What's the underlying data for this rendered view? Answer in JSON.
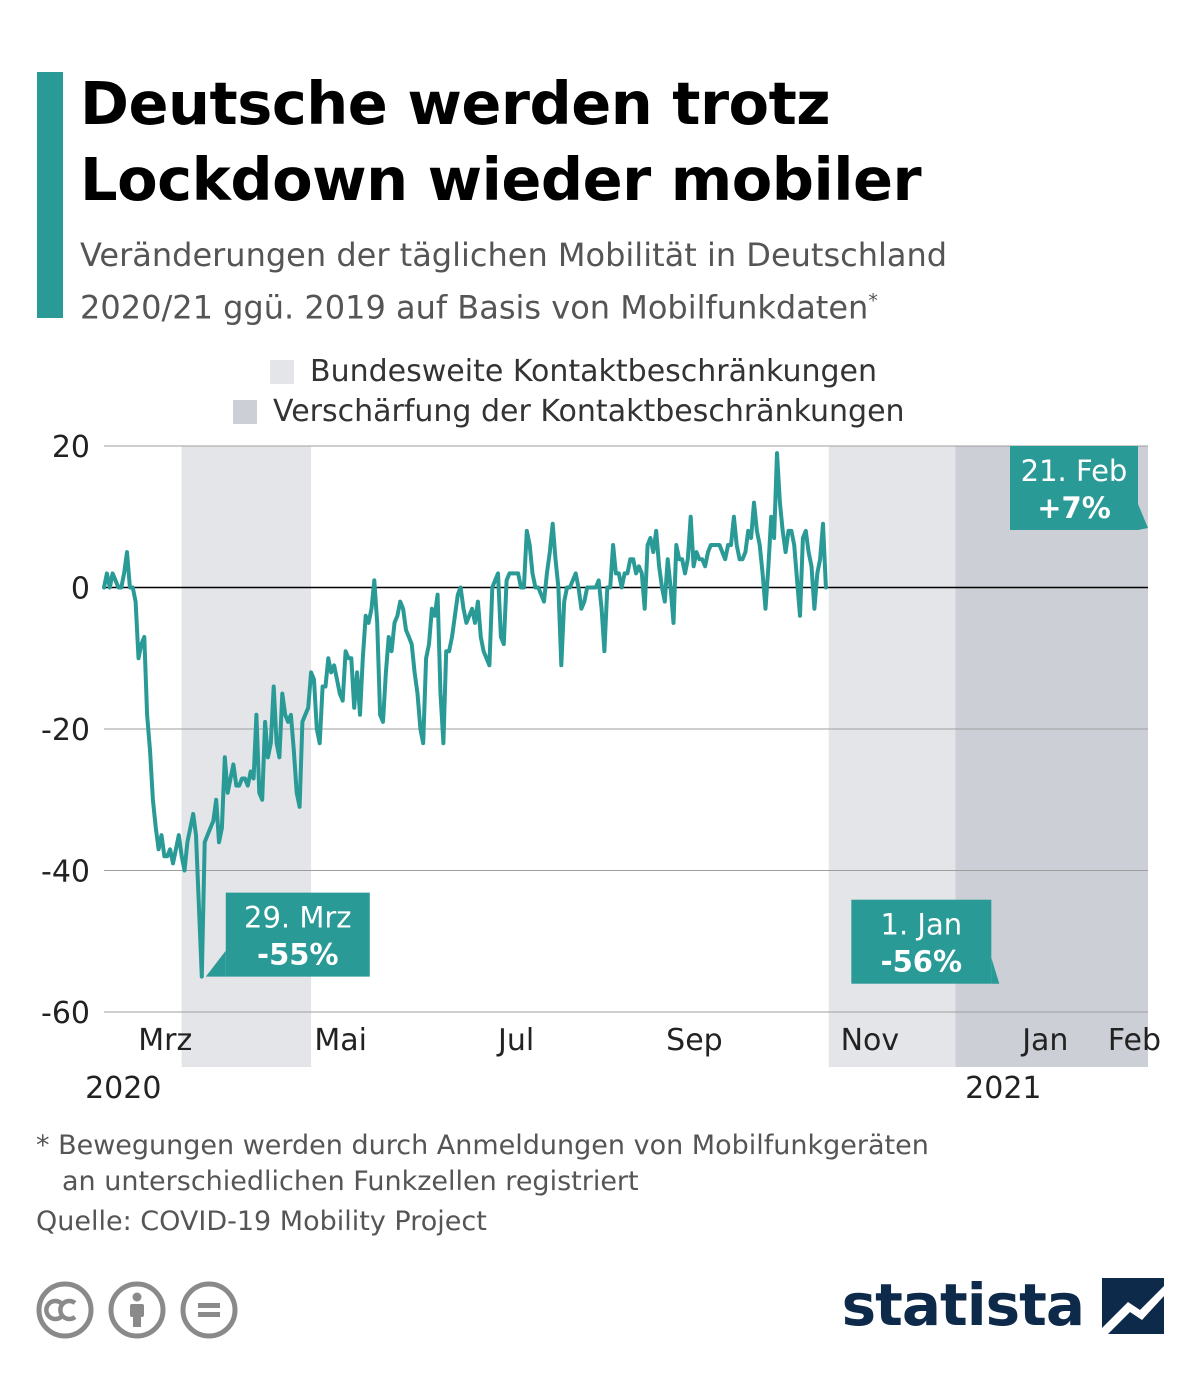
{
  "header": {
    "title_line1": "Deutsche werden trotz",
    "title_line2": "Lockdown wieder mobiler",
    "subtitle_line1": "Veränderungen der täglichen Mobilität in Deutschland",
    "subtitle_line2": "2020/21 ggü. 2019 auf Basis von Mobilfunkdaten",
    "subtitle_marker": "*"
  },
  "colors": {
    "accent": "#2a9a97",
    "line": "#2a9a97",
    "band_light": "#e3e5e8",
    "band_dark": "#ccd0d6",
    "grid": "#9e9e9e",
    "zero_line": "#000000",
    "brand": "#0e2a4a"
  },
  "chart_data": {
    "type": "line",
    "title": "",
    "xlabel": "",
    "ylabel": "",
    "ylim": [
      -60,
      20
    ],
    "y_ticks": [
      "20",
      "0",
      "-20",
      "-40",
      "-60"
    ],
    "grid": true,
    "x_range": [
      "2020-02-24",
      "2021-02-21"
    ],
    "x_month_labels": [
      {
        "label": "Mrz",
        "date": "2020-03-01"
      },
      {
        "label": "Mai",
        "date": "2020-05-01"
      },
      {
        "label": "Jul",
        "date": "2020-07-01"
      },
      {
        "label": "Sep",
        "date": "2020-09-01"
      },
      {
        "label": "Nov",
        "date": "2020-11-01"
      },
      {
        "label": "Jan",
        "date": "2021-01-01"
      },
      {
        "label": "Feb",
        "date": "2021-02-01"
      }
    ],
    "x_year_labels": [
      {
        "label": "2020",
        "date": "2020-03-01"
      },
      {
        "label": "2021",
        "date": "2021-01-01"
      }
    ],
    "legend": [
      {
        "label": "Bundesweite Kontaktbeschränkungen",
        "color": "#e3e5e8"
      },
      {
        "label": "Verschärfung der Kontaktbeschränkungen",
        "color": "#ccd0d6"
      }
    ],
    "legend_position": "top",
    "shaded_periods": [
      {
        "type": "light",
        "start": "2020-03-22",
        "end": "2020-05-06"
      },
      {
        "type": "light",
        "start": "2020-11-02",
        "end": "2020-12-16"
      },
      {
        "type": "dark",
        "start": "2020-12-16",
        "end": "2021-02-21"
      }
    ],
    "series": [
      {
        "points": [
          [
            "2020-02-24",
            0
          ],
          [
            "2020-02-25",
            2
          ],
          [
            "2020-02-26",
            0
          ],
          [
            "2020-02-27",
            2
          ],
          [
            "2020-02-28",
            1
          ],
          [
            "2020-02-29",
            0
          ],
          [
            "2020-03-01",
            0
          ],
          [
            "2020-03-02",
            2
          ],
          [
            "2020-03-03",
            5
          ],
          [
            "2020-03-04",
            0
          ],
          [
            "2020-03-05",
            0
          ],
          [
            "2020-03-06",
            -2
          ],
          [
            "2020-03-07",
            -10
          ],
          [
            "2020-03-08",
            -8
          ],
          [
            "2020-03-09",
            -7
          ],
          [
            "2020-03-10",
            -18
          ],
          [
            "2020-03-11",
            -23
          ],
          [
            "2020-03-12",
            -30
          ],
          [
            "2020-03-13",
            -34
          ],
          [
            "2020-03-14",
            -37
          ],
          [
            "2020-03-15",
            -35
          ],
          [
            "2020-03-16",
            -38
          ],
          [
            "2020-03-17",
            -38
          ],
          [
            "2020-03-18",
            -37
          ],
          [
            "2020-03-19",
            -39
          ],
          [
            "2020-03-20",
            -37
          ],
          [
            "2020-03-21",
            -35
          ],
          [
            "2020-03-22",
            -38
          ],
          [
            "2020-03-23",
            -40
          ],
          [
            "2020-03-24",
            -36
          ],
          [
            "2020-03-25",
            -34
          ],
          [
            "2020-03-26",
            -32
          ],
          [
            "2020-03-27",
            -35
          ],
          [
            "2020-03-28",
            -45
          ],
          [
            "2020-03-29",
            -55
          ],
          [
            "2020-03-30",
            -36
          ],
          [
            "2020-03-31",
            -35
          ],
          [
            "2020-04-01",
            -34
          ],
          [
            "2020-04-02",
            -33
          ],
          [
            "2020-04-03",
            -30
          ],
          [
            "2020-04-04",
            -36
          ],
          [
            "2020-04-05",
            -34
          ],
          [
            "2020-04-06",
            -24
          ],
          [
            "2020-04-07",
            -29
          ],
          [
            "2020-04-08",
            -27
          ],
          [
            "2020-04-09",
            -25
          ],
          [
            "2020-04-10",
            -28
          ],
          [
            "2020-04-11",
            -28
          ],
          [
            "2020-04-12",
            -27
          ],
          [
            "2020-04-13",
            -27
          ],
          [
            "2020-04-14",
            -28
          ],
          [
            "2020-04-15",
            -26
          ],
          [
            "2020-04-16",
            -27
          ],
          [
            "2020-04-17",
            -18
          ],
          [
            "2020-04-18",
            -29
          ],
          [
            "2020-04-19",
            -30
          ],
          [
            "2020-04-20",
            -19
          ],
          [
            "2020-04-21",
            -24
          ],
          [
            "2020-04-22",
            -22
          ],
          [
            "2020-04-23",
            -14
          ],
          [
            "2020-04-24",
            -22
          ],
          [
            "2020-04-25",
            -24
          ],
          [
            "2020-04-26",
            -15
          ],
          [
            "2020-04-27",
            -18
          ],
          [
            "2020-04-28",
            -19
          ],
          [
            "2020-04-29",
            -18
          ],
          [
            "2020-04-30",
            -23
          ],
          [
            "2020-05-01",
            -29
          ],
          [
            "2020-05-02",
            -31
          ],
          [
            "2020-05-03",
            -19
          ],
          [
            "2020-05-04",
            -18
          ],
          [
            "2020-05-05",
            -17
          ],
          [
            "2020-05-06",
            -12
          ],
          [
            "2020-05-07",
            -13
          ],
          [
            "2020-05-08",
            -20
          ],
          [
            "2020-05-09",
            -22
          ],
          [
            "2020-05-10",
            -14
          ],
          [
            "2020-05-11",
            -14
          ],
          [
            "2020-05-12",
            -10
          ],
          [
            "2020-05-13",
            -12
          ],
          [
            "2020-05-14",
            -11
          ],
          [
            "2020-05-15",
            -13
          ],
          [
            "2020-05-16",
            -15
          ],
          [
            "2020-05-17",
            -16
          ],
          [
            "2020-05-18",
            -9
          ],
          [
            "2020-05-19",
            -10
          ],
          [
            "2020-05-20",
            -10
          ],
          [
            "2020-05-21",
            -17
          ],
          [
            "2020-05-22",
            -12
          ],
          [
            "2020-05-23",
            -18
          ],
          [
            "2020-05-24",
            -10
          ],
          [
            "2020-05-25",
            -4
          ],
          [
            "2020-05-26",
            -5
          ],
          [
            "2020-05-27",
            -3
          ],
          [
            "2020-05-28",
            1
          ],
          [
            "2020-05-29",
            -5
          ],
          [
            "2020-05-30",
            -18
          ],
          [
            "2020-05-31",
            -19
          ],
          [
            "2020-06-01",
            -12
          ],
          [
            "2020-06-02",
            -7
          ],
          [
            "2020-06-03",
            -9
          ],
          [
            "2020-06-04",
            -5
          ],
          [
            "2020-06-05",
            -4
          ],
          [
            "2020-06-06",
            -2
          ],
          [
            "2020-06-07",
            -3
          ],
          [
            "2020-06-08",
            -6
          ],
          [
            "2020-06-09",
            -7
          ],
          [
            "2020-06-10",
            -8
          ],
          [
            "2020-06-11",
            -12
          ],
          [
            "2020-06-12",
            -15
          ],
          [
            "2020-06-13",
            -20
          ],
          [
            "2020-06-14",
            -22
          ],
          [
            "2020-06-15",
            -10
          ],
          [
            "2020-06-16",
            -8
          ],
          [
            "2020-06-17",
            -3
          ],
          [
            "2020-06-18",
            -4
          ],
          [
            "2020-06-19",
            -1
          ],
          [
            "2020-06-20",
            -15
          ],
          [
            "2020-06-21",
            -22
          ],
          [
            "2020-06-22",
            -9
          ],
          [
            "2020-06-23",
            -9
          ],
          [
            "2020-06-24",
            -7
          ],
          [
            "2020-06-25",
            -4
          ],
          [
            "2020-06-26",
            -1
          ],
          [
            "2020-06-27",
            0
          ],
          [
            "2020-06-28",
            -3
          ],
          [
            "2020-06-29",
            -5
          ],
          [
            "2020-06-30",
            -4
          ],
          [
            "2020-07-01",
            -3
          ],
          [
            "2020-07-02",
            -5
          ],
          [
            "2020-07-03",
            -2
          ],
          [
            "2020-07-04",
            -7
          ],
          [
            "2020-07-05",
            -9
          ],
          [
            "2020-07-06",
            -10
          ],
          [
            "2020-07-07",
            -11
          ],
          [
            "2020-07-08",
            0
          ],
          [
            "2020-07-09",
            1
          ],
          [
            "2020-07-10",
            2
          ],
          [
            "2020-07-11",
            -7
          ],
          [
            "2020-07-12",
            -8
          ],
          [
            "2020-07-13",
            1
          ],
          [
            "2020-07-14",
            2
          ],
          [
            "2020-07-15",
            2
          ],
          [
            "2020-07-16",
            2
          ],
          [
            "2020-07-17",
            2
          ],
          [
            "2020-07-18",
            0
          ],
          [
            "2020-07-19",
            0
          ],
          [
            "2020-07-20",
            8
          ],
          [
            "2020-07-21",
            6
          ],
          [
            "2020-07-22",
            2
          ],
          [
            "2020-07-23",
            0
          ],
          [
            "2020-07-24",
            0
          ],
          [
            "2020-07-25",
            -1
          ],
          [
            "2020-07-26",
            -2
          ],
          [
            "2020-07-27",
            2
          ],
          [
            "2020-07-28",
            5
          ],
          [
            "2020-07-29",
            9
          ],
          [
            "2020-07-30",
            4
          ],
          [
            "2020-07-31",
            0
          ],
          [
            "2020-08-01",
            -11
          ],
          [
            "2020-08-02",
            -2
          ],
          [
            "2020-08-03",
            0
          ],
          [
            "2020-08-04",
            0
          ],
          [
            "2020-08-05",
            1
          ],
          [
            "2020-08-06",
            2
          ],
          [
            "2020-08-07",
            0
          ],
          [
            "2020-08-08",
            -3
          ],
          [
            "2020-08-09",
            -2
          ],
          [
            "2020-08-10",
            0
          ],
          [
            "2020-08-11",
            0
          ],
          [
            "2020-08-12",
            0
          ],
          [
            "2020-08-13",
            0
          ],
          [
            "2020-08-14",
            1
          ],
          [
            "2020-08-15",
            -3
          ],
          [
            "2020-08-16",
            -9
          ],
          [
            "2020-08-17",
            0
          ],
          [
            "2020-08-18",
            0
          ],
          [
            "2020-08-19",
            6
          ],
          [
            "2020-08-20",
            2
          ],
          [
            "2020-08-21",
            2
          ],
          [
            "2020-08-22",
            0
          ],
          [
            "2020-08-23",
            2
          ],
          [
            "2020-08-24",
            2
          ],
          [
            "2020-08-25",
            4
          ],
          [
            "2020-08-26",
            4
          ],
          [
            "2020-08-27",
            2
          ],
          [
            "2020-08-28",
            3
          ],
          [
            "2020-08-29",
            2
          ],
          [
            "2020-08-30",
            -3
          ],
          [
            "2020-08-31",
            6
          ],
          [
            "2020-09-01",
            7
          ],
          [
            "2020-09-02",
            5
          ],
          [
            "2020-09-03",
            8
          ],
          [
            "2020-09-04",
            3
          ],
          [
            "2020-09-05",
            0
          ],
          [
            "2020-09-06",
            -2
          ],
          [
            "2020-09-07",
            4
          ],
          [
            "2020-09-08",
            0
          ],
          [
            "2020-09-09",
            -5
          ],
          [
            "2020-09-10",
            6
          ],
          [
            "2020-09-11",
            4
          ],
          [
            "2020-09-12",
            4
          ],
          [
            "2020-09-13",
            2
          ],
          [
            "2020-09-14",
            4
          ],
          [
            "2020-09-15",
            10
          ],
          [
            "2020-09-16",
            3
          ],
          [
            "2020-09-17",
            5
          ],
          [
            "2020-09-18",
            4
          ],
          [
            "2020-09-19",
            4
          ],
          [
            "2020-09-20",
            3
          ],
          [
            "2020-09-21",
            5
          ],
          [
            "2020-09-22",
            6
          ],
          [
            "2020-09-23",
            6
          ],
          [
            "2020-09-24",
            6
          ],
          [
            "2020-09-25",
            6
          ],
          [
            "2020-09-26",
            5
          ],
          [
            "2020-09-27",
            4
          ],
          [
            "2020-09-28",
            6
          ],
          [
            "2020-09-29",
            6
          ],
          [
            "2020-09-30",
            10
          ],
          [
            "2020-10-01",
            6
          ],
          [
            "2020-10-02",
            4
          ],
          [
            "2020-10-03",
            4
          ],
          [
            "2020-10-04",
            5
          ],
          [
            "2020-10-05",
            8
          ],
          [
            "2020-10-06",
            7
          ],
          [
            "2020-10-07",
            12
          ],
          [
            "2020-10-08",
            8
          ],
          [
            "2020-10-09",
            6
          ],
          [
            "2020-10-10",
            2
          ],
          [
            "2020-10-11",
            -3
          ],
          [
            "2020-10-12",
            3
          ],
          [
            "2020-10-13",
            10
          ],
          [
            "2020-10-14",
            7
          ],
          [
            "2020-10-15",
            19
          ],
          [
            "2020-10-16",
            12
          ],
          [
            "2020-10-17",
            8
          ],
          [
            "2020-10-18",
            5
          ],
          [
            "2020-10-19",
            8
          ],
          [
            "2020-10-20",
            8
          ],
          [
            "2020-10-21",
            6
          ],
          [
            "2020-10-22",
            1
          ],
          [
            "2020-10-23",
            -4
          ],
          [
            "2020-10-24",
            7
          ],
          [
            "2020-10-25",
            8
          ],
          [
            "2020-10-26",
            5
          ],
          [
            "2020-10-27",
            3
          ],
          [
            "2020-10-28",
            -3
          ],
          [
            "2020-10-29",
            2
          ],
          [
            "2020-10-30",
            4
          ],
          [
            "2020-10-31",
            9
          ],
          [
            "2020-11-01",
            0
          ]
        ],
        "style": "solid"
      }
    ],
    "annotations": [
      {
        "date": "29. Mrz",
        "value": "-55%",
        "at": [
          "2020-03-29",
          -55
        ]
      },
      {
        "date": "1. Jan",
        "value": "-56%",
        "at": [
          "2021-01-01",
          -56
        ]
      },
      {
        "date": "21. Feb",
        "value": "+7%",
        "at": [
          "2021-02-21",
          7
        ]
      }
    ]
  },
  "footer": {
    "footnote_line1": "* Bewegungen werden durch Anmeldungen von Mobilfunkgeräten",
    "footnote_line2": "an unterschiedlichen Funkzellen registriert",
    "source": "Quelle: COVID-19 Mobility Project",
    "license_icons": [
      "creative-commons-icon",
      "attribution-icon",
      "no-derivatives-icon"
    ],
    "brand": "statista"
  }
}
